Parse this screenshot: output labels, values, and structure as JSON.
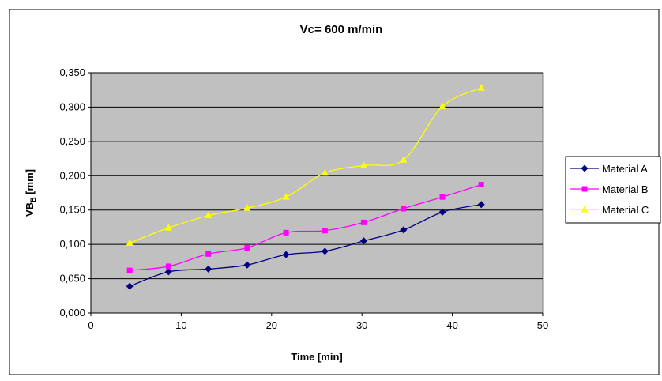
{
  "chart_data": {
    "type": "line",
    "title": "Vc= 600 m/min",
    "xlabel": "Time [min]",
    "ylabel_main": "VB",
    "ylabel_sub": "B",
    "ylabel_unit": " [mm]",
    "xlim": [
      0,
      50
    ],
    "ylim": [
      0,
      0.35
    ],
    "x_ticks": [
      0,
      10,
      20,
      30,
      40,
      50
    ],
    "x_tick_labels": [
      "0",
      "10",
      "20",
      "30",
      "40",
      "50"
    ],
    "y_ticks": [
      0,
      0.05,
      0.1,
      0.15,
      0.2,
      0.25,
      0.3,
      0.35
    ],
    "y_tick_labels": [
      "0,000",
      "0,050",
      "0,100",
      "0,150",
      "0,200",
      "0,250",
      "0,300",
      "0,350"
    ],
    "grid": true,
    "legend_position": "right",
    "plot_background": "#c0c0c0",
    "x": [
      4.3,
      8.6,
      13,
      17.3,
      21.6,
      25.9,
      30.2,
      34.6,
      38.9,
      43.2
    ],
    "series": [
      {
        "name": "Material A",
        "color": "#000080",
        "marker": "diamond",
        "values": [
          0.039,
          0.06,
          0.064,
          0.07,
          0.085,
          0.09,
          0.105,
          0.121,
          0.147,
          0.158
        ]
      },
      {
        "name": "Material B",
        "color": "#ff00ff",
        "marker": "square",
        "values": [
          0.062,
          0.068,
          0.086,
          0.095,
          0.117,
          0.12,
          0.132,
          0.152,
          0.169,
          0.187
        ]
      },
      {
        "name": "Material C",
        "color": "#ffff00",
        "marker": "triangle",
        "values": [
          0.102,
          0.124,
          0.142,
          0.153,
          0.169,
          0.204,
          0.215,
          0.223,
          0.301,
          0.328
        ]
      }
    ]
  }
}
